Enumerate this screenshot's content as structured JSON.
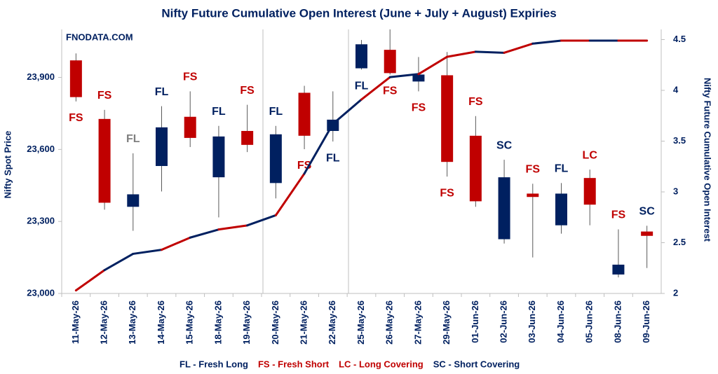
{
  "chart_data": {
    "type": "candlestick",
    "title": "Nifty Future Cumulative Open Interest (June + July + August) Expiries",
    "watermark": "FNODATA.COM",
    "ylabel": "Nifty Spot Price",
    "y2label": "Nifty Future Cumulative Open Interest",
    "categories": [
      "11-May-26",
      "12-May-26",
      "13-May-26",
      "14-May-26",
      "15-May-26",
      "18-May-26",
      "19-May-26",
      "20-May-26",
      "21-May-26",
      "22-May-26",
      "25-May-26",
      "26-May-26",
      "27-May-26",
      "29-May-26",
      "01-Jun-26",
      "02-Jun-26",
      "03-Jun-26",
      "04-Jun-26",
      "05-Jun-26",
      "08-Jun-26",
      "09-Jun-26"
    ],
    "open": [
      23971,
      23727,
      23361,
      23531,
      23736,
      23484,
      23677,
      23460,
      23836,
      23677,
      23938,
      24015,
      23883,
      23909,
      23657,
      23226,
      23416,
      23284,
      23481,
      23079,
      23258
    ],
    "high": [
      24000,
      23765,
      23584,
      23780,
      23842,
      23698,
      23786,
      23698,
      23865,
      23842,
      24056,
      24100,
      23985,
      24006,
      23739,
      23557,
      23457,
      23460,
      23516,
      23267,
      23282
    ],
    "low": [
      23800,
      23349,
      23261,
      23425,
      23610,
      23317,
      23589,
      23396,
      23601,
      23633,
      23933,
      23912,
      23842,
      23487,
      23361,
      23208,
      23150,
      23249,
      23284,
      23067,
      23106
    ],
    "close": [
      23818,
      23378,
      23413,
      23692,
      23648,
      23654,
      23619,
      23663,
      23657,
      23724,
      24038,
      23918,
      23912,
      23548,
      23384,
      23484,
      23402,
      23416,
      23370,
      23120,
      23240
    ],
    "up_color": "#002060",
    "down_color": "#c00000",
    "signals": [
      "FS",
      "FS",
      "FL",
      "FL",
      "FS",
      "FL",
      "FS",
      "FL",
      "FS",
      "FL",
      "FL",
      "FS",
      "FS",
      "FS",
      "FS",
      "SC",
      "FS",
      "FL",
      "LC",
      "FS",
      "SC"
    ],
    "signal_positions": [
      "below",
      "above",
      "above",
      "above",
      "above",
      "above",
      "above",
      "above",
      "below",
      "below",
      "below",
      "below",
      "below",
      "below",
      "above",
      "above",
      "above",
      "above",
      "above",
      "above",
      "above"
    ],
    "signal_colors": [
      "#c00000",
      "#c00000",
      "#7f7f7f",
      "#002060",
      "#c00000",
      "#002060",
      "#c00000",
      "#002060",
      "#c00000",
      "#002060",
      "#002060",
      "#c00000",
      "#c00000",
      "#c00000",
      "#c00000",
      "#002060",
      "#c00000",
      "#002060",
      "#c00000",
      "#c00000",
      "#002060"
    ],
    "oi_line": {
      "axis": "y2",
      "values": [
        2.03,
        2.23,
        2.39,
        2.43,
        2.55,
        2.63,
        2.67,
        2.77,
        3.18,
        3.67,
        3.91,
        4.13,
        4.16,
        4.33,
        4.38,
        4.37,
        4.46,
        4.49,
        4.49,
        4.49,
        4.49
      ]
    },
    "ylim": [
      23000,
      24100
    ],
    "yticks": [
      {
        "value": 23000,
        "label": "23,000"
      },
      {
        "value": 23300,
        "label": "23,300"
      },
      {
        "value": 23600,
        "label": "23,600"
      },
      {
        "value": 23900,
        "label": "23,900"
      }
    ],
    "y2lim": [
      2,
      4.6
    ],
    "y2ticks": [
      2,
      2.5,
      3,
      3.5,
      4,
      4.5
    ],
    "legend": [
      {
        "label": "FL - Fresh Long",
        "color": "#002060"
      },
      {
        "label": "FS - Fresh Short",
        "color": "#c00000"
      },
      {
        "label": "LC - Long Covering",
        "color": "#c00000"
      },
      {
        "label": "SC - Short Covering",
        "color": "#002060"
      }
    ]
  }
}
